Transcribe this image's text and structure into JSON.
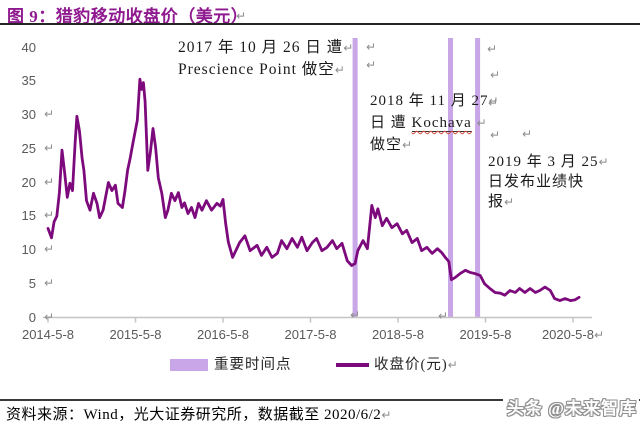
{
  "title": {
    "prefix": "图 9：",
    "text": "猎豹移动收盘价（美元）"
  },
  "marks": {
    "return_mark": "↵"
  },
  "chart_data": {
    "type": "line",
    "title": "猎豹移动收盘价（美元）",
    "ylim": [
      0,
      40
    ],
    "yticks": [
      {
        "v": 40,
        "mark": false
      },
      {
        "v": 35,
        "mark": false
      },
      {
        "v": 30,
        "mark": true
      },
      {
        "v": 25,
        "mark": true
      },
      {
        "v": 20,
        "mark": true
      },
      {
        "v": 15,
        "mark": true
      },
      {
        "v": 10,
        "mark": true
      },
      {
        "v": 5,
        "mark": true
      },
      {
        "v": 0,
        "mark": true
      }
    ],
    "xticks": [
      {
        "label": "2014-5-8",
        "mark": false
      },
      {
        "label": "2015-5-8",
        "mark": false
      },
      {
        "label": "2016-5-8",
        "mark": false
      },
      {
        "label": "2017-5-8",
        "mark": false
      },
      {
        "label": "2018-5-8",
        "mark": false
      },
      {
        "label": "2019-5-8",
        "mark": false
      },
      {
        "label": "2020-5-8",
        "mark": true
      }
    ],
    "x_unit": "years_since_2014-05-08",
    "grid": false,
    "legend_position": "bottom",
    "band_color": "#C9A6E7",
    "events": [
      {
        "t": 3.51,
        "label": "2017-10-26 遭 Prescience Point 做空"
      },
      {
        "t": 4.6,
        "label": "2018-11-27 遭 Kochava 做空"
      },
      {
        "t": 4.91,
        "label": "2019-3-25 发布业绩快报"
      }
    ],
    "series": [
      {
        "name": "收盘价(元)",
        "color": "#7D0A7D",
        "points": [
          [
            0,
            13.2
          ],
          [
            0.04,
            11.8
          ],
          [
            0.07,
            14.2
          ],
          [
            0.1,
            15
          ],
          [
            0.13,
            18.5
          ],
          [
            0.16,
            24.8
          ],
          [
            0.19,
            21.5
          ],
          [
            0.22,
            17.8
          ],
          [
            0.25,
            19.9
          ],
          [
            0.28,
            18.8
          ],
          [
            0.31,
            25.8
          ],
          [
            0.33,
            29.8
          ],
          [
            0.36,
            27.6
          ],
          [
            0.39,
            23.6
          ],
          [
            0.41,
            21.8
          ],
          [
            0.44,
            17.3
          ],
          [
            0.48,
            15.9
          ],
          [
            0.52,
            18.4
          ],
          [
            0.56,
            16.9
          ],
          [
            0.59,
            14.8
          ],
          [
            0.63,
            15.9
          ],
          [
            0.69,
            20
          ],
          [
            0.73,
            18.8
          ],
          [
            0.77,
            19.6
          ],
          [
            0.8,
            16.9
          ],
          [
            0.85,
            16.3
          ],
          [
            0.88,
            18.8
          ],
          [
            0.91,
            21.8
          ],
          [
            0.94,
            23.7
          ],
          [
            0.97,
            25.8
          ],
          [
            1.02,
            29.2
          ],
          [
            1.05,
            35.3
          ],
          [
            1.07,
            33.8
          ],
          [
            1.09,
            34.8
          ],
          [
            1.11,
            32
          ],
          [
            1.14,
            21.8
          ],
          [
            1.17,
            24.5
          ],
          [
            1.2,
            28
          ],
          [
            1.23,
            25.2
          ],
          [
            1.26,
            20.7
          ],
          [
            1.3,
            18.4
          ],
          [
            1.34,
            14.8
          ],
          [
            1.37,
            15.9
          ],
          [
            1.41,
            18.4
          ],
          [
            1.45,
            17.3
          ],
          [
            1.49,
            18.5
          ],
          [
            1.53,
            16.3
          ],
          [
            1.56,
            17
          ],
          [
            1.6,
            15.4
          ],
          [
            1.64,
            16.3
          ],
          [
            1.68,
            14.8
          ],
          [
            1.72,
            16.9
          ],
          [
            1.76,
            15.9
          ],
          [
            1.81,
            17.3
          ],
          [
            1.87,
            15.9
          ],
          [
            1.93,
            16.9
          ],
          [
            1.97,
            16.5
          ],
          [
            2,
            17.5
          ],
          [
            2.03,
            14
          ],
          [
            2.06,
            11.2
          ],
          [
            2.11,
            8.9
          ],
          [
            2.19,
            11.1
          ],
          [
            2.25,
            12.1
          ],
          [
            2.31,
            9.9
          ],
          [
            2.39,
            10.7
          ],
          [
            2.44,
            9.2
          ],
          [
            2.5,
            10.4
          ],
          [
            2.56,
            8.9
          ],
          [
            2.62,
            9.5
          ],
          [
            2.67,
            11.4
          ],
          [
            2.73,
            10.2
          ],
          [
            2.79,
            11.7
          ],
          [
            2.85,
            10.4
          ],
          [
            2.9,
            11.9
          ],
          [
            2.96,
            9.9
          ],
          [
            3.02,
            11.1
          ],
          [
            3.07,
            11.7
          ],
          [
            3.13,
            9.9
          ],
          [
            3.19,
            10.4
          ],
          [
            3.25,
            11.4
          ],
          [
            3.3,
            10.2
          ],
          [
            3.36,
            11
          ],
          [
            3.42,
            8.4
          ],
          [
            3.47,
            7.7
          ],
          [
            3.51,
            8
          ],
          [
            3.54,
            9.9
          ],
          [
            3.6,
            11.4
          ],
          [
            3.65,
            10.2
          ],
          [
            3.7,
            16.6
          ],
          [
            3.74,
            14.8
          ],
          [
            3.77,
            16.1
          ],
          [
            3.82,
            13.6
          ],
          [
            3.87,
            14.7
          ],
          [
            3.93,
            13.3
          ],
          [
            3.99,
            13.9
          ],
          [
            4.05,
            12.4
          ],
          [
            4.1,
            12.9
          ],
          [
            4.16,
            11.1
          ],
          [
            4.22,
            11.7
          ],
          [
            4.27,
            9.9
          ],
          [
            4.33,
            10.4
          ],
          [
            4.39,
            9.5
          ],
          [
            4.45,
            10.2
          ],
          [
            4.5,
            9.6
          ],
          [
            4.54,
            8.9
          ],
          [
            4.58,
            8.3
          ],
          [
            4.61,
            5.6
          ],
          [
            4.65,
            5.9
          ],
          [
            4.71,
            6.5
          ],
          [
            4.77,
            7
          ],
          [
            4.82,
            6.7
          ],
          [
            4.88,
            6.5
          ],
          [
            4.94,
            6.2
          ],
          [
            4.99,
            5
          ],
          [
            5.05,
            4.3
          ],
          [
            5.11,
            3.7
          ],
          [
            5.17,
            3.6
          ],
          [
            5.22,
            3.3
          ],
          [
            5.28,
            4
          ],
          [
            5.34,
            3.7
          ],
          [
            5.39,
            4.3
          ],
          [
            5.45,
            3.7
          ],
          [
            5.51,
            4.3
          ],
          [
            5.57,
            3.7
          ],
          [
            5.62,
            4
          ],
          [
            5.68,
            4.5
          ],
          [
            5.74,
            4
          ],
          [
            5.79,
            2.8
          ],
          [
            5.85,
            2.5
          ],
          [
            5.91,
            2.8
          ],
          [
            5.97,
            2.5
          ],
          [
            6.02,
            2.6
          ],
          [
            6.07,
            3
          ]
        ]
      }
    ]
  },
  "annotations": [
    {
      "lines": [
        {
          "text": "2017 年 10 月 26 日 遭",
          "mark": true
        },
        {
          "text": "Prescience Point 做空",
          "mark": true
        }
      ]
    },
    {
      "lines": [
        {
          "text": "2018 年 11 月 27",
          "mark": true
        },
        {
          "text": "日 遭 Kochava ",
          "mark": true,
          "underline_word": "Kochava"
        },
        {
          "text": "做空",
          "mark": true
        }
      ]
    },
    {
      "lines": [
        {
          "text": "2019 年 3 月 25",
          "mark": true
        },
        {
          "text": "日发布业绩快",
          "mark": false
        },
        {
          "text": "报",
          "mark": true
        }
      ]
    }
  ],
  "legend": {
    "items": [
      {
        "type": "band",
        "label": "重要时间点",
        "mark": false
      },
      {
        "type": "line",
        "label": "收盘价(元)",
        "mark": true
      }
    ]
  },
  "footer": {
    "text": "资料来源：Wind，光大证券研究所，数据截至 2020/6/2",
    "mark": true
  },
  "watermark": {
    "text": "头条 @未来智库"
  }
}
